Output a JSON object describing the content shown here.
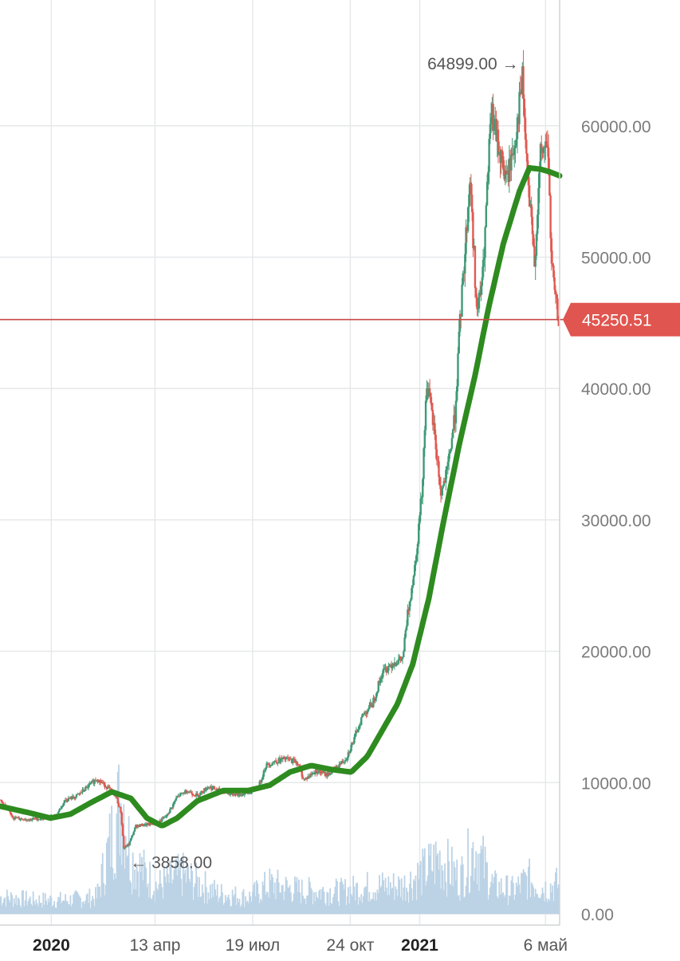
{
  "chart_data": {
    "type": "candlestick",
    "y_axis": {
      "range": [
        0,
        68000
      ],
      "ticks": [
        {
          "value": 0,
          "label": "0.00"
        },
        {
          "value": 10000,
          "label": "10000.00"
        },
        {
          "value": 20000,
          "label": "20000.00"
        },
        {
          "value": 30000,
          "label": "30000.00"
        },
        {
          "value": 40000,
          "label": "40000.00"
        },
        {
          "value": 50000,
          "label": "50000.00"
        },
        {
          "value": 60000,
          "label": "60000.00"
        }
      ],
      "position": "right"
    },
    "x_axis": {
      "range": [
        "2019-11-11",
        "2021-05-20"
      ],
      "ticks": [
        {
          "date": "2020-01-01",
          "label": "2020",
          "bold": true
        },
        {
          "date": "2020-04-13",
          "label": "13 апр",
          "bold": false
        },
        {
          "date": "2020-07-19",
          "label": "19 июл",
          "bold": false
        },
        {
          "date": "2020-10-24",
          "label": "24 окт",
          "bold": false
        },
        {
          "date": "2021-01-01",
          "label": "2021",
          "bold": true
        },
        {
          "date": "2021-05-06",
          "label": "6 май",
          "bold": false
        }
      ]
    },
    "grid": true,
    "colors": {
      "up": "#3f9a76",
      "down": "#e05a52",
      "moving_average": "#2e8b1f",
      "volume": "#bcd3e6",
      "price_line": "#c9494a",
      "grid": "#e6e8ea",
      "axis": "#d0d3d6"
    },
    "series": [
      {
        "type": "close_price",
        "points": [
          [
            "2019-11-11",
            8700
          ],
          [
            "2019-11-25",
            7300
          ],
          [
            "2019-12-10",
            7200
          ],
          [
            "2019-12-25",
            7300
          ],
          [
            "2020-01-05",
            7400
          ],
          [
            "2020-01-15",
            8700
          ],
          [
            "2020-01-25",
            8900
          ],
          [
            "2020-02-05",
            9600
          ],
          [
            "2020-02-15",
            10300
          ],
          [
            "2020-02-25",
            9700
          ],
          [
            "2020-03-05",
            9000
          ],
          [
            "2020-03-10",
            7800
          ],
          [
            "2020-03-13",
            5000
          ],
          [
            "2020-03-18",
            5300
          ],
          [
            "2020-03-25",
            6700
          ],
          [
            "2020-04-05",
            6800
          ],
          [
            "2020-04-15",
            6900
          ],
          [
            "2020-04-25",
            7500
          ],
          [
            "2020-05-05",
            8900
          ],
          [
            "2020-05-15",
            9400
          ],
          [
            "2020-05-25",
            9000
          ],
          [
            "2020-06-05",
            9700
          ],
          [
            "2020-06-15",
            9400
          ],
          [
            "2020-06-25",
            9200
          ],
          [
            "2020-07-05",
            9100
          ],
          [
            "2020-07-15",
            9200
          ],
          [
            "2020-07-25",
            9700
          ],
          [
            "2020-08-01",
            11300
          ],
          [
            "2020-08-10",
            11600
          ],
          [
            "2020-08-20",
            11800
          ],
          [
            "2020-09-01",
            11600
          ],
          [
            "2020-09-08",
            10200
          ],
          [
            "2020-09-20",
            10900
          ],
          [
            "2020-10-01",
            10600
          ],
          [
            "2020-10-10",
            11100
          ],
          [
            "2020-10-20",
            11900
          ],
          [
            "2020-10-28",
            13300
          ],
          [
            "2020-11-05",
            15100
          ],
          [
            "2020-11-15",
            16000
          ],
          [
            "2020-11-25",
            18400
          ],
          [
            "2020-12-05",
            19100
          ],
          [
            "2020-12-15",
            19400
          ],
          [
            "2020-12-20",
            22800
          ],
          [
            "2020-12-28",
            27000
          ],
          [
            "2021-01-03",
            32000
          ],
          [
            "2021-01-08",
            40500
          ],
          [
            "2021-01-15",
            37000
          ],
          [
            "2021-01-22",
            32000
          ],
          [
            "2021-01-28",
            33500
          ],
          [
            "2021-02-05",
            38000
          ],
          [
            "2021-02-10",
            45000
          ],
          [
            "2021-02-20",
            56000
          ],
          [
            "2021-02-27",
            45500
          ],
          [
            "2021-03-05",
            49000
          ],
          [
            "2021-03-13",
            61000
          ],
          [
            "2021-03-20",
            58500
          ],
          [
            "2021-03-28",
            55800
          ],
          [
            "2021-04-05",
            58500
          ],
          [
            "2021-04-13",
            63500
          ],
          [
            "2021-04-18",
            56000
          ],
          [
            "2021-04-25",
            49500
          ],
          [
            "2021-05-01",
            57700
          ],
          [
            "2021-05-08",
            58800
          ],
          [
            "2021-05-12",
            49500
          ],
          [
            "2021-05-16",
            46500
          ],
          [
            "2021-05-19",
            45250.51
          ]
        ]
      },
      {
        "type": "moving_average",
        "points": [
          [
            "2019-11-11",
            8200
          ],
          [
            "2019-12-10",
            7700
          ],
          [
            "2019-12-31",
            7300
          ],
          [
            "2020-01-20",
            7600
          ],
          [
            "2020-02-10",
            8500
          ],
          [
            "2020-03-01",
            9300
          ],
          [
            "2020-03-20",
            8800
          ],
          [
            "2020-04-05",
            7300
          ],
          [
            "2020-04-20",
            6700
          ],
          [
            "2020-05-05",
            7300
          ],
          [
            "2020-05-25",
            8600
          ],
          [
            "2020-06-20",
            9400
          ],
          [
            "2020-07-15",
            9400
          ],
          [
            "2020-08-05",
            9800
          ],
          [
            "2020-08-25",
            10800
          ],
          [
            "2020-09-15",
            11300
          ],
          [
            "2020-10-05",
            11000
          ],
          [
            "2020-10-25",
            10800
          ],
          [
            "2020-11-10",
            12000
          ],
          [
            "2020-11-25",
            14000
          ],
          [
            "2020-12-10",
            16000
          ],
          [
            "2020-12-25",
            19000
          ],
          [
            "2021-01-10",
            24000
          ],
          [
            "2021-01-25",
            30000
          ],
          [
            "2021-02-10",
            36000
          ],
          [
            "2021-02-25",
            41000
          ],
          [
            "2021-03-10",
            46000
          ],
          [
            "2021-03-25",
            51000
          ],
          [
            "2021-04-10",
            55000
          ],
          [
            "2021-04-20",
            56800
          ],
          [
            "2021-05-01",
            56700
          ],
          [
            "2021-05-10",
            56500
          ],
          [
            "2021-05-20",
            56200
          ]
        ]
      },
      {
        "type": "volume",
        "points": [
          [
            "2019-11-15",
            1800
          ],
          [
            "2019-12-15",
            1500
          ],
          [
            "2020-01-15",
            1500
          ],
          [
            "2020-02-15",
            1800
          ],
          [
            "2020-03-12",
            13000
          ],
          [
            "2020-03-20",
            6000
          ],
          [
            "2020-04-15",
            3000
          ],
          [
            "2020-05-10",
            4200
          ],
          [
            "2020-06-15",
            2200
          ],
          [
            "2020-07-15",
            1800
          ],
          [
            "2020-08-05",
            3200
          ],
          [
            "2020-09-05",
            2500
          ],
          [
            "2020-10-15",
            2400
          ],
          [
            "2020-11-15",
            3000
          ],
          [
            "2020-12-15",
            3000
          ],
          [
            "2021-01-05",
            4500
          ],
          [
            "2021-01-20",
            6000
          ],
          [
            "2021-02-10",
            3800
          ],
          [
            "2021-02-25",
            7300
          ],
          [
            "2021-03-15",
            3000
          ],
          [
            "2021-04-05",
            2500
          ],
          [
            "2021-04-18",
            3800
          ],
          [
            "2021-05-05",
            2800
          ],
          [
            "2021-05-18",
            3200
          ]
        ]
      }
    ],
    "annotations": [
      {
        "label": "64899.00",
        "arrow": "→",
        "date": "2021-04-14",
        "value": 64899
      },
      {
        "label": "3858.00",
        "arrow": "←",
        "date": "2020-03-13",
        "value": 3858
      }
    ],
    "current_price": {
      "label": "45250.51",
      "value": 45250.51
    }
  }
}
